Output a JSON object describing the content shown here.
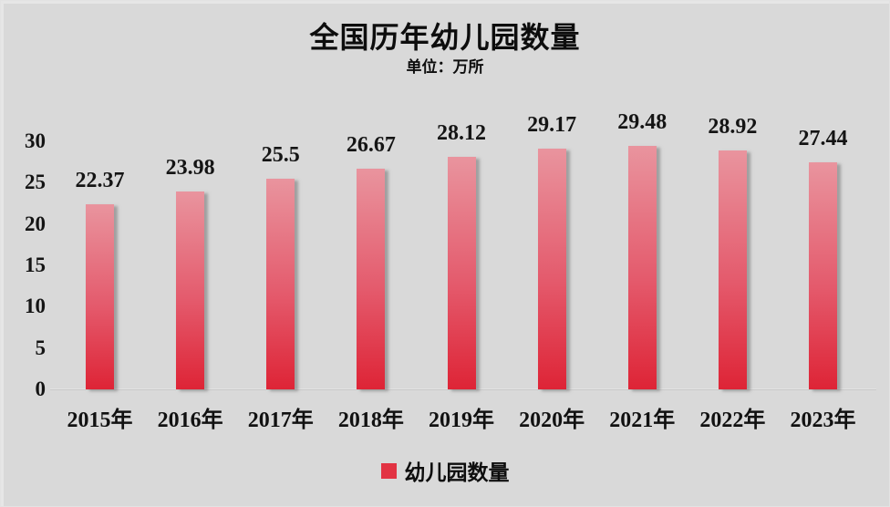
{
  "chart_data": {
    "type": "bar",
    "title": "全国历年幼儿园数量",
    "subtitle": "单位：万所",
    "categories": [
      "2015年",
      "2016年",
      "2017年",
      "2018年",
      "2019年",
      "2020年",
      "2021年",
      "2022年",
      "2023年"
    ],
    "series": [
      {
        "name": "幼儿园数量",
        "values": [
          22.37,
          23.98,
          25.5,
          26.67,
          28.12,
          29.17,
          29.48,
          28.92,
          27.44
        ]
      }
    ],
    "data_labels": [
      "22.37",
      "23.98",
      "25.5",
      "26.67",
      "28.12",
      "29.17",
      "29.48",
      "28.92",
      "27.44"
    ],
    "xlabel": "",
    "ylabel": "",
    "ylim": [
      0,
      30
    ],
    "yticks": [
      0,
      5,
      10,
      15,
      20,
      25,
      30
    ],
    "grid": false,
    "legend_position": "bottom",
    "colors": {
      "background": "#d9d9d9",
      "bar_gradient_top": "#e9949e",
      "bar_gradient_bottom": "#de2436",
      "legend_marker": "#e23343",
      "text": "#0d0d0d"
    }
  }
}
